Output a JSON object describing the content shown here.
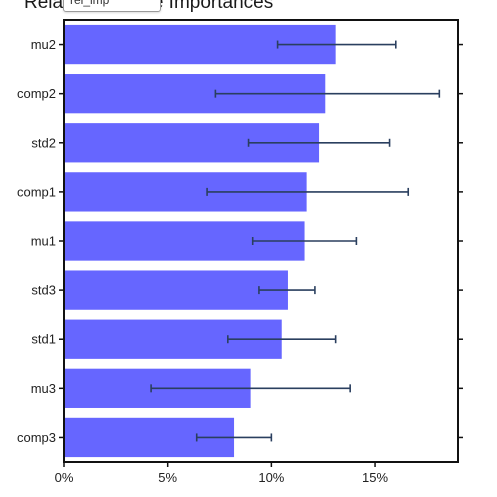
{
  "chart_data": {
    "type": "bar",
    "orientation": "horizontal",
    "title": "Relative Feature Importances",
    "categories": [
      "mu2",
      "comp2",
      "std2",
      "comp1",
      "mu1",
      "std3",
      "std1",
      "mu3",
      "comp3"
    ],
    "values": [
      13.1,
      12.6,
      12.3,
      11.7,
      11.6,
      10.8,
      10.5,
      9.0,
      8.2
    ],
    "error_low": [
      10.3,
      7.3,
      8.9,
      6.9,
      9.1,
      9.4,
      7.9,
      4.2,
      6.4
    ],
    "error_high": [
      16.0,
      18.1,
      15.7,
      16.6,
      14.1,
      12.1,
      13.1,
      13.8,
      10.0
    ],
    "xlim": [
      0,
      19
    ],
    "xticks": [
      0,
      5,
      10,
      15
    ],
    "xtick_labels": [
      "0%",
      "5%",
      "10%",
      "15%"
    ],
    "xlabel": "",
    "ylabel": "",
    "grid": false,
    "bar_color": "#6666ff",
    "error_color": "#2a3f5f"
  },
  "dropdown": {
    "value": "rel_imp"
  }
}
